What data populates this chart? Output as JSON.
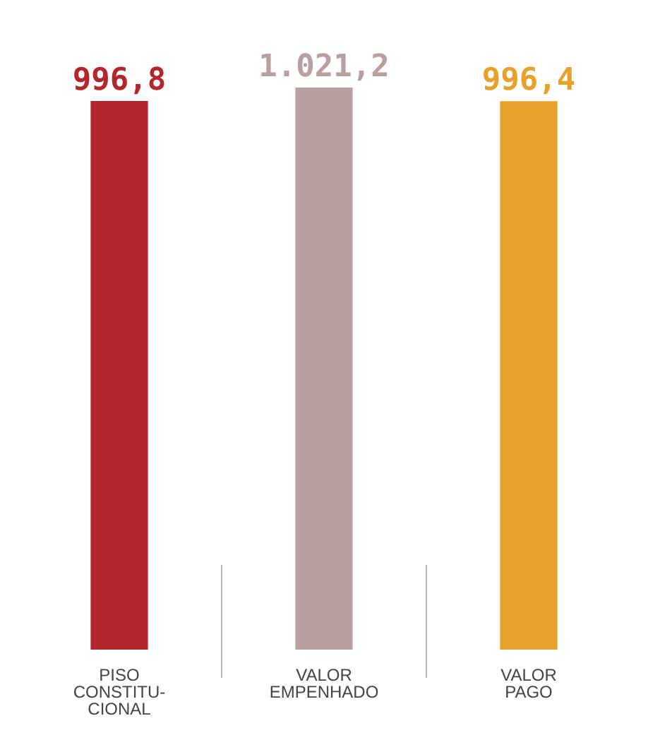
{
  "chart_data": {
    "type": "bar",
    "categories": [
      "PISO\nCONSTITU-\nCIONAL",
      "VALOR\nEMPENHADO",
      "VALOR\nPAGO"
    ],
    "values": [
      996.8,
      1021.2,
      996.4
    ],
    "colors": [
      "#b3262b",
      "#b9a0a0",
      "#e6a12a"
    ],
    "value_labels": [
      "996,8",
      "1.021,2",
      "996,4"
    ]
  }
}
